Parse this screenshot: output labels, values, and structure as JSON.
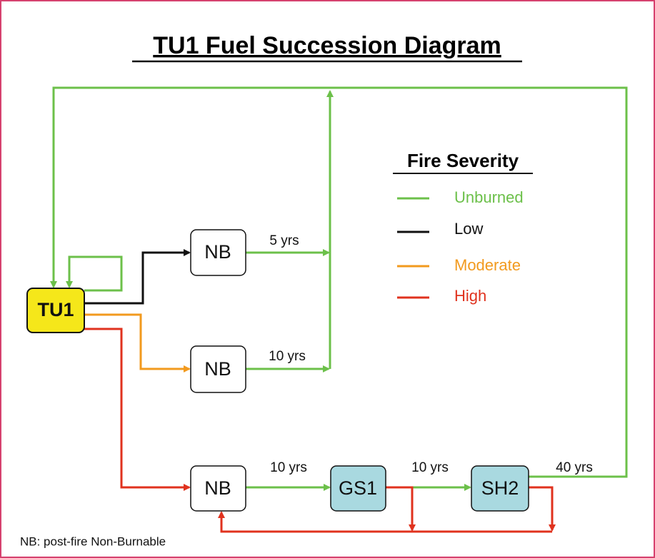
{
  "title": "TU1 Fuel Succession Diagram",
  "nodes": [
    {
      "label": "TU1"
    },
    {
      "label": "NB"
    },
    {
      "label": "NB"
    },
    {
      "label": "NB"
    },
    {
      "label": "GS1"
    },
    {
      "label": "SH2"
    }
  ],
  "edges": [
    {
      "label": "5 yrs"
    },
    {
      "label": "10 yrs"
    },
    {
      "label": "10 yrs"
    },
    {
      "label": "10 yrs"
    },
    {
      "label": "40 yrs"
    }
  ],
  "legend": {
    "title": "Fire Severity",
    "items": [
      "Unburned",
      "Low",
      "Moderate",
      "High"
    ]
  },
  "footnote": "NB: post-fire Non-Burnable"
}
